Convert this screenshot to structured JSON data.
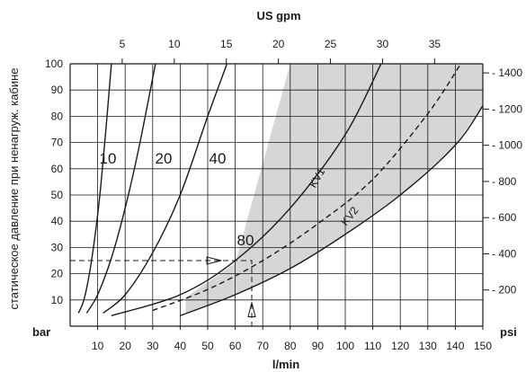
{
  "chart_data": {
    "type": "line",
    "ylabel": "статическое давление при ненагруж. кабине",
    "x_bottom": {
      "label": "l/min",
      "range": [
        0,
        150
      ],
      "ticks": [
        "10",
        "20",
        "30",
        "40",
        "50",
        "60",
        "70",
        "80",
        "90",
        "100",
        "110",
        "120",
        "130",
        "140",
        "150"
      ]
    },
    "x_top": {
      "label": "US gpm",
      "range": [
        0,
        39.6
      ],
      "ticks": [
        "5",
        "10",
        "15",
        "20",
        "25",
        "30",
        "35"
      ]
    },
    "y_left": {
      "unit": "bar",
      "range": [
        0,
        100
      ],
      "ticks": [
        "10",
        "20",
        "30",
        "40",
        "50",
        "60",
        "70",
        "80",
        "90",
        "100"
      ]
    },
    "y_right": {
      "unit": "psi",
      "range": [
        0,
        1450
      ],
      "ticks": [
        "200",
        "400",
        "600",
        "800",
        "1000",
        "1200",
        "1400"
      ]
    },
    "grid": true,
    "series": [
      {
        "name": "10",
        "style": "solid",
        "x": [
          3,
          5,
          7,
          9,
          11,
          13,
          15
        ],
        "y": [
          5,
          10,
          20,
          34,
          52,
          75,
          100
        ]
      },
      {
        "name": "20",
        "style": "solid",
        "x": [
          6,
          10,
          15,
          20,
          25,
          31
        ],
        "y": [
          5,
          12,
          26,
          45,
          68,
          100
        ]
      },
      {
        "name": "40",
        "style": "solid",
        "x": [
          12,
          20,
          30,
          40,
          50,
          57
        ],
        "y": [
          5,
          12,
          28,
          50,
          80,
          100
        ]
      },
      {
        "name": "80",
        "style": "solid",
        "x": [
          15,
          40,
          60,
          80,
          100,
          113
        ],
        "y": [
          4,
          12,
          25,
          45,
          73,
          100
        ]
      },
      {
        "name": "KV1",
        "style": "dashed",
        "x": [
          30,
          50,
          70,
          90,
          110,
          130,
          142
        ],
        "y": [
          6,
          14,
          25,
          39,
          56,
          81,
          100
        ]
      },
      {
        "name": "KV2",
        "style": "solid",
        "x": [
          40,
          60,
          80,
          100,
          120,
          140,
          150
        ],
        "y": [
          4,
          12,
          22,
          35,
          50,
          69,
          84
        ]
      }
    ],
    "shaded_region": {
      "description": "",
      "upper": {
        "x": [
          42,
          60,
          80,
          100,
          120,
          140,
          150
        ],
        "y": [
          11,
          24,
          100,
          100,
          100,
          100,
          100
        ]
      },
      "lower": {
        "x": [
          42,
          60,
          80,
          100,
          120,
          140,
          150
        ],
        "y": [
          5,
          12,
          22,
          35,
          50,
          69,
          84
        ]
      }
    },
    "example_path": {
      "flow_lpm": 66,
      "pressure_bar": 25
    },
    "colors": {
      "shade": "#d6d6d6",
      "line": "#1a1a1a",
      "grid": "#1a1a1a"
    }
  }
}
